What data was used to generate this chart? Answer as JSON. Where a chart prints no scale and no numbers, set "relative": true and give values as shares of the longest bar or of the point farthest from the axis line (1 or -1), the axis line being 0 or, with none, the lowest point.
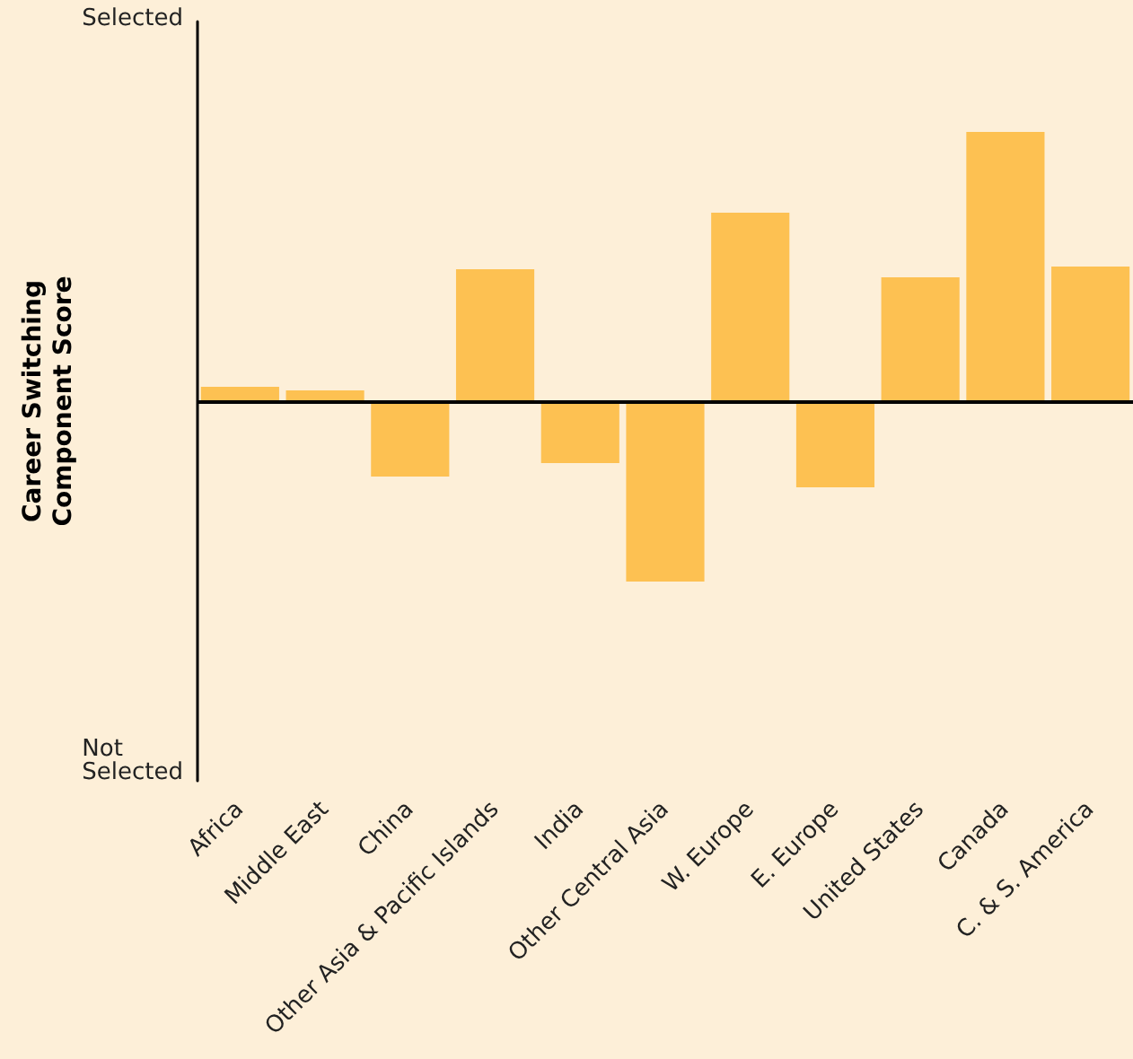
{
  "chart_data": {
    "type": "bar",
    "relative": true,
    "ylabel": "Career Switching Component Score",
    "categories": [
      "Africa",
      "Middle East",
      "China",
      "Other Asia & Pacific Islands",
      "India",
      "Other Central Asia",
      "W. Europe",
      "E. Europe",
      "United States",
      "Canada",
      "C. & S. America"
    ],
    "values": [
      0.053,
      0.04,
      -0.28,
      0.49,
      -0.23,
      -0.67,
      0.7,
      -0.32,
      0.46,
      1,
      0.5
    ],
    "color": "#fdc152",
    "annotations": [
      "Selected",
      "Not Selected"
    ],
    "grid": false
  }
}
